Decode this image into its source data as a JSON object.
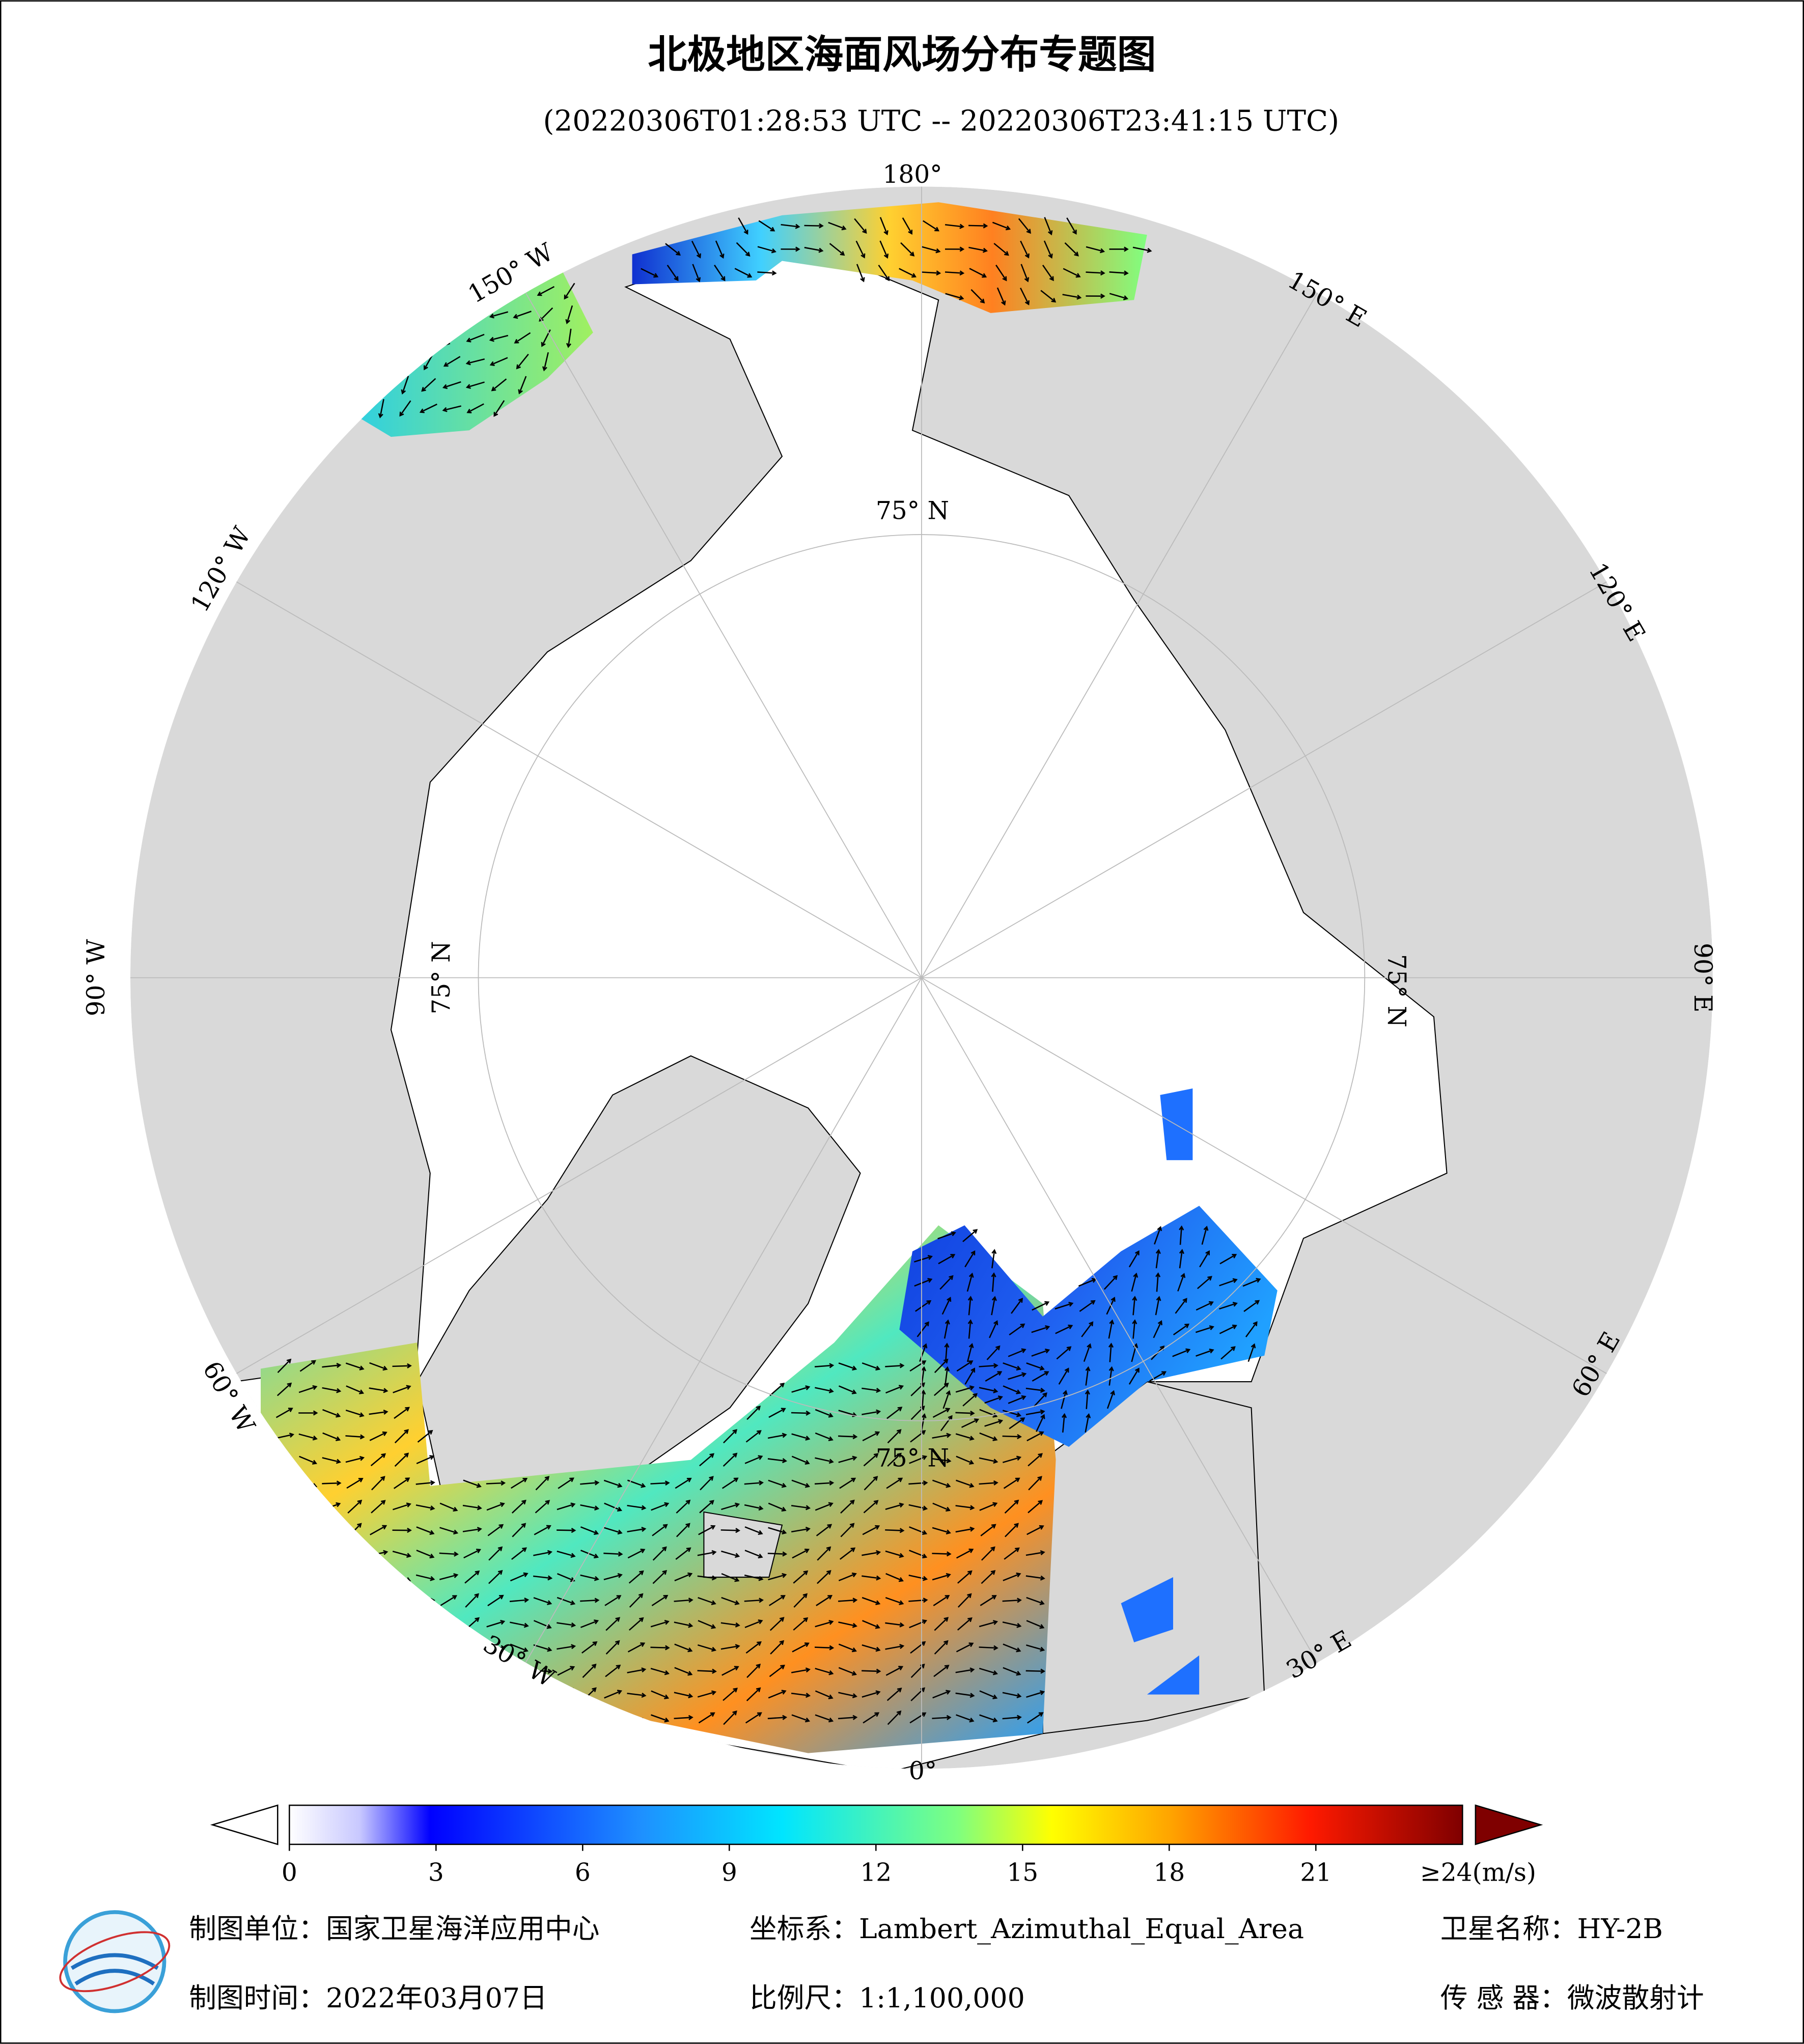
{
  "header": {
    "title": "北极地区海面风场分布专题图",
    "subtitle": "(20220306T01:28:53 UTC -- 20220306T23:41:15 UTC)"
  },
  "map": {
    "longitude_labels": [
      "180°",
      "150° W",
      "120° W",
      "90° W",
      "60° W",
      "30° W",
      "0°",
      "30° E",
      "60° E",
      "90° E",
      "120° E",
      "150° E"
    ],
    "latitude_labels": [
      "75° N",
      "75° N",
      "75° N",
      "75° N"
    ]
  },
  "colorbar": {
    "range": [
      0,
      24
    ],
    "ticks": [
      0,
      3,
      6,
      9,
      12,
      15,
      18,
      21
    ],
    "max_label": "≥24(m/s)"
  },
  "footer": {
    "unit": "制图单位：国家卫星海洋应用中心",
    "projection": "坐标系：Lambert_Azimuthal_Equal_Area",
    "satellite": "卫星名称：HY-2B",
    "date": "制图时间：2022年03月07日",
    "scale": "比例尺：1:1,100,000",
    "sensor": "传 感 器：微波散射计"
  }
}
